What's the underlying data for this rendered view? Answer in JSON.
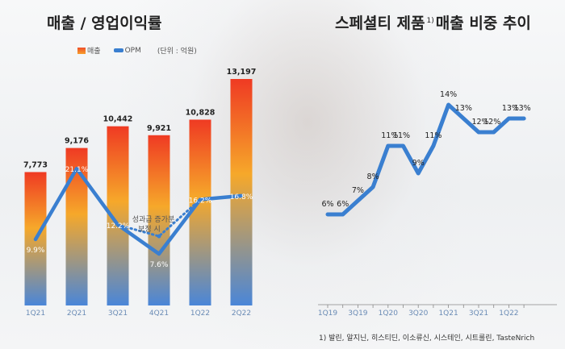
{
  "left": {
    "title": "매출 / 영업이익률",
    "legend_bar": "매출",
    "legend_line": "OPM",
    "unit": "(단위 : 억원)",
    "annotation_line1": "성과급 증가분",
    "annotation_line2": "보정 시"
  },
  "right": {
    "title_main": "스페셜티 제품",
    "title_sup": "1)",
    "title_tail": "매출 비중 추이",
    "footnote": "1) 발린, 알지닌, 히스티딘, 이소류신, 시스테인, 시트룰린, TasteNrich"
  },
  "colors": {
    "bar_top": "#ef3a23",
    "bar_mid": "#f6a82a",
    "bar_bottom": "#4a86d8",
    "line": "#3a7fd0"
  },
  "chart_data": [
    {
      "type": "bar",
      "title": "매출 / 영업이익률",
      "categories": [
        "1Q21",
        "2Q21",
        "3Q21",
        "4Q21",
        "1Q22",
        "2Q22"
      ],
      "series": [
        {
          "name": "매출",
          "type": "bar",
          "values": [
            7773,
            9176,
            10442,
            9921,
            10828,
            13197
          ],
          "labels": [
            "7,773",
            "9,176",
            "10,442",
            "9,921",
            "10,828",
            "13,197"
          ]
        },
        {
          "name": "OPM",
          "type": "line",
          "values": [
            9.9,
            21.1,
            12.2,
            7.6,
            16.2,
            16.8
          ],
          "labels": [
            "9.9%",
            "21.1%",
            "12.2%",
            "7.6%",
            "16.2%",
            "16.8%"
          ]
        }
      ],
      "adjusted_opm": {
        "categories": [
          "3Q21",
          "4Q21",
          "1Q22"
        ],
        "values": [
          12.2,
          10.4,
          16.2
        ],
        "style": "dotted"
      },
      "ylim_bar": [
        0,
        14000
      ],
      "ylim_line": [
        0,
        30
      ],
      "grid": false
    },
    {
      "type": "line",
      "title": "스페셜티 제품 매출 비중 추이",
      "x": [
        "1Q19",
        "2Q19",
        "3Q19",
        "4Q19",
        "1Q20",
        "2Q20",
        "3Q20",
        "4Q20",
        "1Q21",
        "2Q21",
        "3Q21",
        "4Q21",
        "1Q22",
        "2Q22"
      ],
      "tick_labels": [
        "1Q19",
        "3Q19",
        "1Q20",
        "3Q20",
        "1Q21",
        "3Q21",
        "1Q22"
      ],
      "series": [
        {
          "values": [
            6,
            6,
            7,
            8,
            11,
            11,
            9,
            11,
            14,
            13,
            12,
            12,
            13,
            13
          ],
          "labels": [
            "6%",
            "6%",
            "7%",
            "8%",
            "11%",
            "11%",
            "9%",
            "11%",
            "14%",
            "13%",
            "12%",
            "12%",
            "13%",
            "13%"
          ]
        }
      ],
      "ylim": [
        4,
        16
      ],
      "grid": false
    }
  ]
}
